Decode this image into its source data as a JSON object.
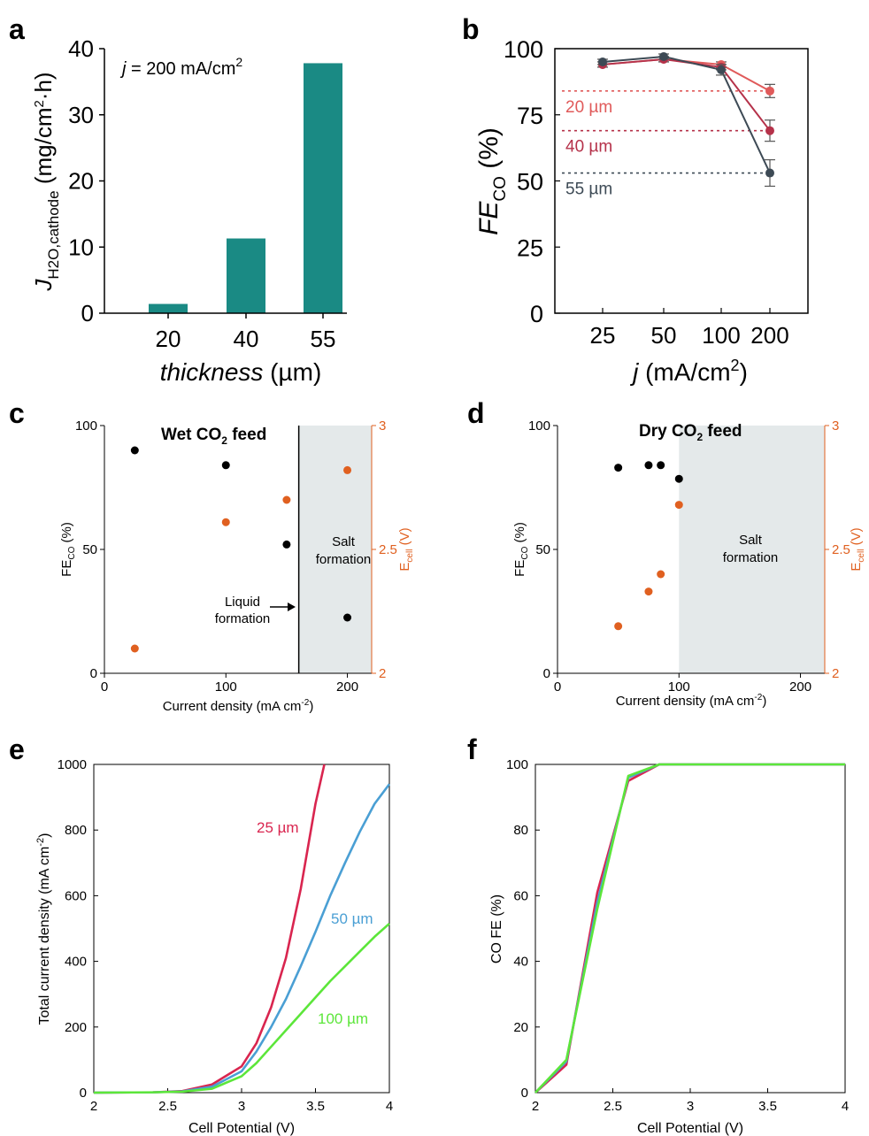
{
  "panels": {
    "a": {
      "letter": "a"
    },
    "b": {
      "letter": "b"
    },
    "c": {
      "letter": "c"
    },
    "d": {
      "letter": "d"
    },
    "e": {
      "letter": "e"
    },
    "f": {
      "letter": "f"
    }
  },
  "chart_data": [
    {
      "panel": "a",
      "type": "bar",
      "annotation": "j = 200 mA/cm²",
      "xlabel": "thickness (µm)",
      "ylabel": "J H2O,cathode (mg/cm²·h)",
      "categories": [
        "20",
        "40",
        "55"
      ],
      "values": [
        1.4,
        11.3,
        37.8
      ],
      "ylim": [
        0,
        40
      ],
      "yticks": [
        0,
        10,
        20,
        30,
        40
      ],
      "color": "#1a8a84"
    },
    {
      "panel": "b",
      "type": "line",
      "xlabel": "j (mA/cm²)",
      "ylabel": "FE CO (%)",
      "categories": [
        "25",
        "50",
        "100",
        "200"
      ],
      "ylim": [
        0,
        100
      ],
      "yticks": [
        0,
        25,
        50,
        75,
        100
      ],
      "series": [
        {
          "name": "20 µm",
          "values": [
            94,
            96,
            94,
            84
          ],
          "err": [
            1,
            1,
            1,
            2.5
          ],
          "color": "#e05a5a"
        },
        {
          "name": "40 µm",
          "values": [
            94,
            96,
            93,
            69
          ],
          "err": [
            1,
            1,
            1,
            4
          ],
          "color": "#b5324a"
        },
        {
          "name": "55 µm",
          "values": [
            95,
            97,
            92,
            53
          ],
          "err": [
            1,
            1,
            2,
            5
          ],
          "color": "#3d4a55"
        }
      ]
    },
    {
      "panel": "c",
      "type": "scatter",
      "title": "Wet CO₂ feed",
      "xlabel": "Current density (mA cm⁻²)",
      "ylabel_left": "FE CO (%)",
      "ylabel_right": "E cell (V)",
      "xlim": [
        0,
        220
      ],
      "xticks": [
        0,
        100,
        200
      ],
      "ylim_left": [
        0,
        100
      ],
      "yticks_left": [
        0,
        50,
        100
      ],
      "ylim_right": [
        2,
        3
      ],
      "yticks_right": [
        2,
        2.5,
        3
      ],
      "series": [
        {
          "name": "FE CO",
          "axis": "left",
          "x": [
            25,
            100,
            150,
            200
          ],
          "y": [
            90,
            84,
            52,
            22.5
          ],
          "color": "#000000"
        },
        {
          "name": "E cell",
          "axis": "right",
          "x": [
            25,
            100,
            150,
            200
          ],
          "y": [
            2.1,
            2.61,
            2.7,
            2.82
          ],
          "color": "#e06020"
        }
      ],
      "region": {
        "label": [
          "Salt",
          "formation"
        ],
        "x_start": 160,
        "x_end": 220,
        "boundary": 160
      },
      "annotation": [
        "Liquid",
        "formation"
      ]
    },
    {
      "panel": "d",
      "type": "scatter",
      "title": "Dry CO₂ feed",
      "xlabel": "Current density (mA cm⁻²)",
      "ylabel_left": "FE CO (%)",
      "ylabel_right": "E cell (V)",
      "xlim": [
        0,
        220
      ],
      "xticks": [
        0,
        100,
        200
      ],
      "ylim_left": [
        0,
        100
      ],
      "yticks_left": [
        0,
        50,
        100
      ],
      "ylim_right": [
        2,
        3
      ],
      "yticks_right": [
        2,
        2.5,
        3
      ],
      "series": [
        {
          "name": "FE CO",
          "axis": "left",
          "x": [
            50,
            75,
            85,
            100
          ],
          "y": [
            83,
            84,
            84,
            78.5
          ],
          "color": "#000000"
        },
        {
          "name": "E cell",
          "axis": "right",
          "x": [
            50,
            75,
            85,
            100
          ],
          "y": [
            2.19,
            2.33,
            2.4,
            2.68
          ],
          "color": "#e06020"
        }
      ],
      "region": {
        "label": [
          "Salt",
          "formation"
        ],
        "x_start": 100,
        "x_end": 220
      }
    },
    {
      "panel": "e",
      "type": "line",
      "xlabel": "Cell Potential (V)",
      "ylabel": "Total current density (mA cm⁻²)",
      "xlim": [
        2,
        4
      ],
      "xticks": [
        "2",
        "2.5",
        "3",
        "3.5",
        "4"
      ],
      "ylim": [
        0,
        1000
      ],
      "yticks": [
        0,
        200,
        400,
        600,
        800,
        1000
      ],
      "series": [
        {
          "name": "25 µm",
          "x": [
            2,
            2.4,
            2.6,
            2.8,
            3.0,
            3.1,
            3.2,
            3.3,
            3.4,
            3.5,
            3.56
          ],
          "y": [
            0,
            1,
            5,
            25,
            80,
            150,
            260,
            410,
            620,
            880,
            1000
          ],
          "color": "#d9254f"
        },
        {
          "name": "50 µm",
          "x": [
            2,
            2.4,
            2.6,
            2.8,
            3.0,
            3.1,
            3.2,
            3.3,
            3.4,
            3.5,
            3.6,
            3.7,
            3.8,
            3.9,
            4.0
          ],
          "y": [
            0,
            1,
            4,
            18,
            65,
            125,
            200,
            285,
            385,
            490,
            600,
            700,
            795,
            880,
            940
          ],
          "color": "#4a9fd4"
        },
        {
          "name": "100 µm",
          "x": [
            2,
            2.4,
            2.6,
            2.8,
            3.0,
            3.1,
            3.2,
            3.3,
            3.4,
            3.5,
            3.6,
            3.7,
            3.8,
            3.9,
            4.0
          ],
          "y": [
            0,
            1,
            3,
            12,
            50,
            90,
            140,
            190,
            240,
            290,
            340,
            385,
            430,
            475,
            515
          ],
          "color": "#5ce63a"
        }
      ]
    },
    {
      "panel": "f",
      "type": "line",
      "xlabel": "Cell Potential (V)",
      "ylabel": "CO FE (%)",
      "xlim": [
        2,
        4
      ],
      "xticks": [
        "2",
        "2.5",
        "3",
        "3.5",
        "4"
      ],
      "ylim": [
        0,
        100
      ],
      "yticks": [
        0,
        20,
        40,
        60,
        80,
        100
      ],
      "series": [
        {
          "name": "25 µm",
          "x": [
            2,
            2.2,
            2.4,
            2.6,
            2.8,
            4.0
          ],
          "y": [
            0,
            8.5,
            61,
            95,
            100,
            100
          ],
          "color": "#d9254f"
        },
        {
          "name": "50 µm",
          "x": [
            2,
            2.2,
            2.4,
            2.6,
            2.8,
            4.0
          ],
          "y": [
            0,
            9.5,
            58,
            96,
            100,
            100
          ],
          "color": "#4a9fd4"
        },
        {
          "name": "100 µm",
          "x": [
            2,
            2.2,
            2.4,
            2.6,
            2.8,
            4.0
          ],
          "y": [
            0,
            10,
            56,
            96.5,
            100,
            100
          ],
          "color": "#5ce63a"
        }
      ]
    }
  ]
}
